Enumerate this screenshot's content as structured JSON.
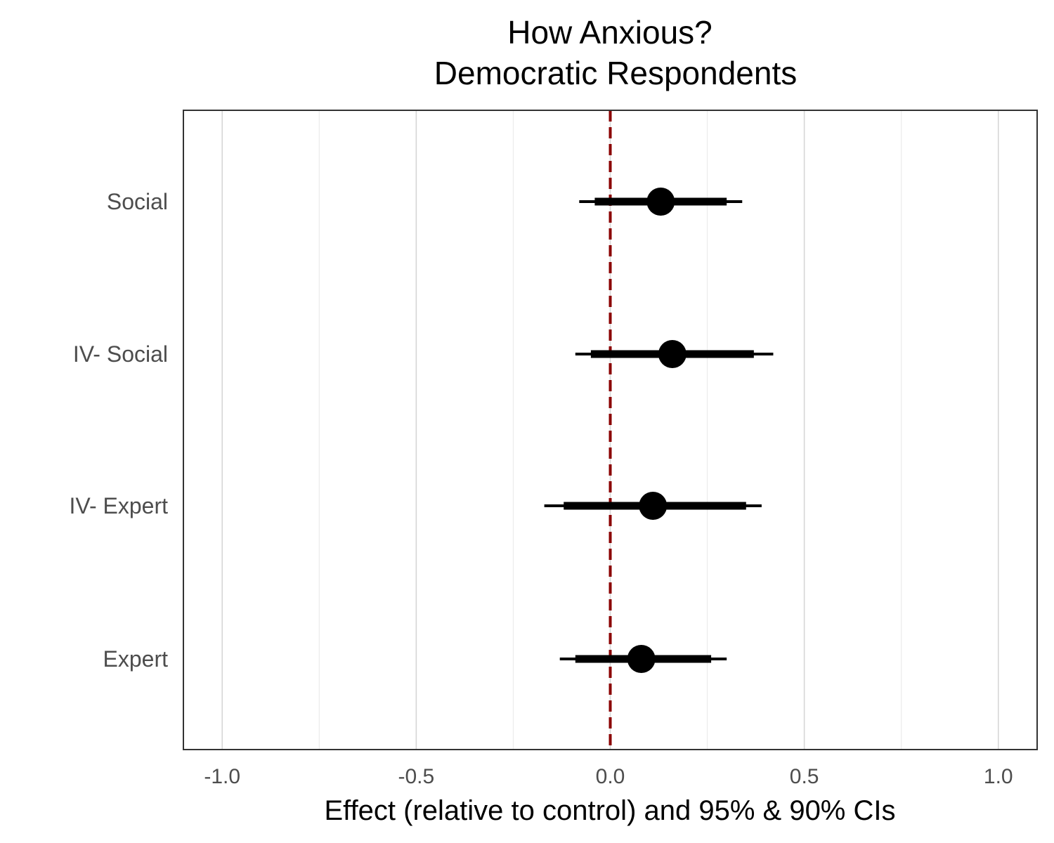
{
  "chart_data": {
    "type": "forest",
    "title": [
      "How Anxious?",
      "Democratic Respondents"
    ],
    "xlabel": "Effect (relative to control) and 95% & 90% CIs",
    "xlim": [
      -1.1,
      1.1
    ],
    "x_ticks": [
      -1.0,
      -0.5,
      0.0,
      0.5,
      1.0
    ],
    "x_tick_labels": [
      "-1.0",
      "-0.5",
      "0.0",
      "0.5",
      "1.0"
    ],
    "x_minor_ticks": [
      -0.75,
      -0.25,
      0.25,
      0.75
    ],
    "categories": [
      "Social",
      "IV- Social",
      "IV- Expert",
      "Expert"
    ],
    "estimates": [
      {
        "label": "Social",
        "estimate": 0.13,
        "ci90": [
          -0.04,
          0.3
        ],
        "ci95": [
          -0.08,
          0.34
        ]
      },
      {
        "label": "IV- Social",
        "estimate": 0.16,
        "ci90": [
          -0.05,
          0.37
        ],
        "ci95": [
          -0.09,
          0.42
        ]
      },
      {
        "label": "IV- Expert",
        "estimate": 0.11,
        "ci90": [
          -0.12,
          0.35
        ],
        "ci95": [
          -0.17,
          0.39
        ]
      },
      {
        "label": "Expert",
        "estimate": 0.08,
        "ci90": [
          -0.09,
          0.26
        ],
        "ci95": [
          -0.13,
          0.3
        ]
      }
    ],
    "reference_line": {
      "x": 0.0,
      "style": "dashed",
      "color": "#8b0000"
    },
    "grid": "vertical",
    "legend": "none"
  }
}
